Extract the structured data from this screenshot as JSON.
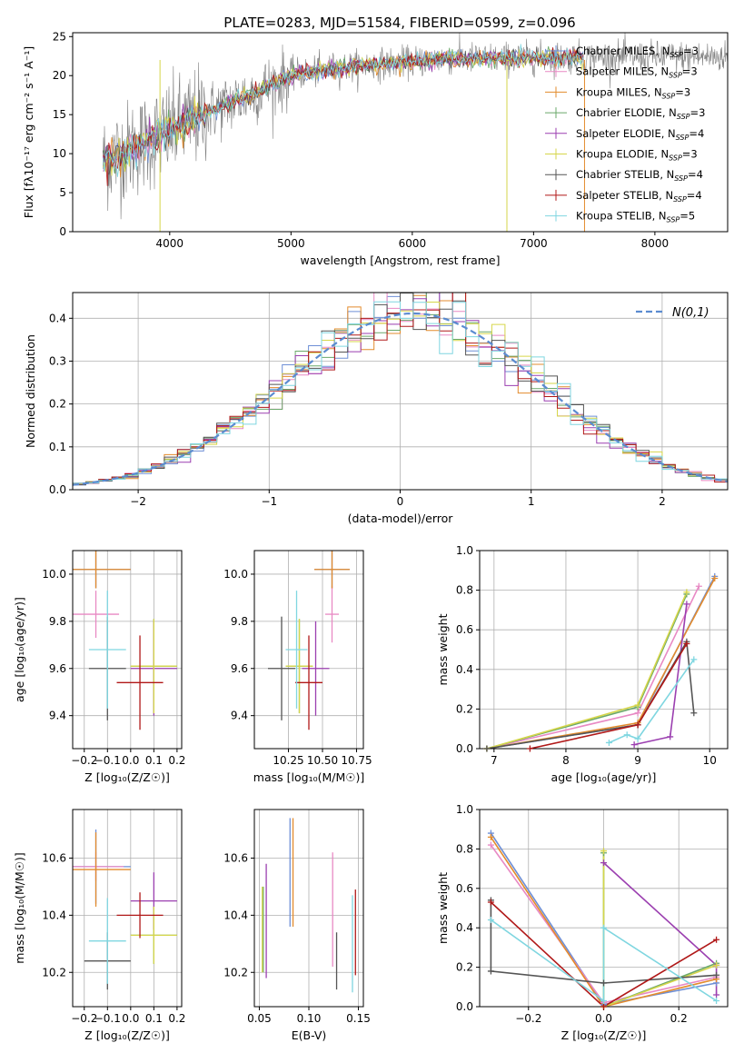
{
  "colors": {
    "blue": "#6e8fd6",
    "orange": "#e38b2c",
    "olive": "#a8a83a",
    "green": "#6aa86a",
    "purple": "#9b3fb0",
    "yellow": "#d6d64a",
    "dark": "#555555",
    "red": "#b01818",
    "cyan": "#7fd6e0",
    "pink": "#e889c4",
    "lime": "#b2e34a",
    "grey": "#808080",
    "dashed": "#5b8bd0"
  },
  "chart_data": [
    {
      "type": "line",
      "title": "PLATE=0283, MJD=51584, FIBERID=0599, z=0.096",
      "xlabel": "wavelength [Angstrom, rest frame]",
      "ylabel": "Flux [fλ10⁻¹⁷ erg cm⁻² s⁻¹ A⁻¹]",
      "xlim": [
        3200,
        8600
      ],
      "ylim": [
        0,
        25.5
      ],
      "xticks": [
        4000,
        5000,
        6000,
        7000,
        8000
      ],
      "yticks": [
        0,
        5,
        10,
        15,
        20,
        25
      ],
      "legend": [
        {
          "label": "Chabrier MILES, N",
          "sub": "SSP",
          "tail": "=3",
          "color": "blue"
        },
        {
          "label": "Salpeter MILES, N",
          "sub": "SSP",
          "tail": "=3",
          "color": "pink"
        },
        {
          "label": "Kroupa MILES, N",
          "sub": "SSP",
          "tail": "=3",
          "color": "orange"
        },
        {
          "label": "Chabrier ELODIE, N",
          "sub": "SSP",
          "tail": "=3",
          "color": "green"
        },
        {
          "label": "Salpeter ELODIE, N",
          "sub": "SSP",
          "tail": "=4",
          "color": "purple"
        },
        {
          "label": "Kroupa ELODIE, N",
          "sub": "SSP",
          "tail": "=3",
          "color": "yellow"
        },
        {
          "label": "Chabrier STELIB, N",
          "sub": "SSP",
          "tail": "=4",
          "color": "dark"
        },
        {
          "label": "Salpeter STELIB, N",
          "sub": "SSP",
          "tail": "=4",
          "color": "red"
        },
        {
          "label": "Kroupa STELIB, N",
          "sub": "SSP",
          "tail": "=5",
          "color": "cyan"
        }
      ],
      "continuum": {
        "x": [
          3450,
          3600,
          3800,
          4000,
          4200,
          4500,
          4800,
          5000,
          5300,
          5600,
          6000,
          6300,
          6600,
          7000,
          7200,
          7420
        ],
        "y": [
          9.0,
          10.0,
          11.5,
          13.0,
          14.5,
          16.5,
          18.5,
          20.0,
          20.8,
          21.3,
          21.8,
          22.2,
          22.2,
          22.3,
          22.3,
          22.4
        ]
      },
      "data_range": [
        3450,
        8600
      ],
      "model_end": 7420,
      "spikes": [
        {
          "x": 6780,
          "color": "yellow"
        },
        {
          "x": 7420,
          "color": "orange"
        },
        {
          "x": 3920,
          "color": "yellow"
        }
      ]
    },
    {
      "type": "histogram",
      "xlabel": "(data-model)/error",
      "ylabel": "Normed distribution",
      "xlim": [
        -2.5,
        2.5
      ],
      "ylim": [
        0,
        0.46
      ],
      "xticks": [
        -2,
        -1,
        0,
        1,
        2
      ],
      "yticks": [
        0.0,
        0.1,
        0.2,
        0.3,
        0.4
      ],
      "xtick_labels": [
        "−2",
        "−1",
        "0",
        "1",
        "2"
      ],
      "legend_label": "N(0,1)",
      "bin_width": 0.1,
      "gaussian": {
        "mu": 0.1,
        "sigma": 0.97
      }
    },
    {
      "type": "scatter",
      "xlabel": "Z [log₁₀(Z/Z☉)]",
      "ylabel": "age  [log₁₀(age/yr)]",
      "xlim": [
        -0.25,
        0.22
      ],
      "ylim": [
        9.26,
        10.1
      ],
      "xticks": [
        -0.2,
        -0.1,
        0.0,
        0.1,
        0.2
      ],
      "yticks": [
        9.4,
        9.6,
        9.8,
        10.0
      ],
      "xtick_labels": [
        "−0.2",
        "−0.1",
        "0.0",
        "0.1",
        "0.2"
      ],
      "points": [
        {
          "x": -0.15,
          "y": 10.02,
          "xerr": 0.15,
          "yerr": 0.08,
          "color": "blue"
        },
        {
          "x": -0.15,
          "y": 9.83,
          "xerr": 0.1,
          "yerr": 0.1,
          "color": "pink"
        },
        {
          "x": -0.15,
          "y": 10.02,
          "xerr": 0.15,
          "yerr": 0.08,
          "color": "orange"
        },
        {
          "x": 0.1,
          "y": 9.61,
          "xerr": 0.1,
          "yerr": 0.2,
          "color": "green"
        },
        {
          "x": 0.1,
          "y": 9.6,
          "xerr": 0.1,
          "yerr": 0.2,
          "color": "purple"
        },
        {
          "x": 0.1,
          "y": 9.61,
          "xerr": 0.1,
          "yerr": 0.2,
          "color": "yellow"
        },
        {
          "x": -0.1,
          "y": 9.6,
          "xerr": 0.08,
          "yerr": 0.22,
          "color": "dark"
        },
        {
          "x": 0.04,
          "y": 9.54,
          "xerr": 0.1,
          "yerr": 0.2,
          "color": "red"
        },
        {
          "x": -0.1,
          "y": 9.68,
          "xerr": 0.08,
          "yerr": 0.25,
          "color": "cyan"
        }
      ]
    },
    {
      "type": "scatter",
      "xlabel": "mass [log₁₀(M/M☉)]",
      "xlim": [
        10.0,
        10.8
      ],
      "ylim": [
        9.26,
        10.1
      ],
      "xticks": [
        10.25,
        10.5,
        10.75
      ],
      "yticks": [
        9.4,
        9.6,
        9.8,
        10.0
      ],
      "xtick_labels": [
        "10.25",
        "10.50",
        "10.75"
      ],
      "points": [
        {
          "x": 10.57,
          "y": 10.02,
          "xerr": 0.13,
          "yerr": 0.08,
          "color": "blue"
        },
        {
          "x": 10.57,
          "y": 9.83,
          "xerr": 0.05,
          "yerr": 0.12,
          "color": "pink"
        },
        {
          "x": 10.57,
          "y": 10.02,
          "xerr": 0.13,
          "yerr": 0.08,
          "color": "orange"
        },
        {
          "x": 10.33,
          "y": 9.61,
          "xerr": 0.1,
          "yerr": 0.2,
          "color": "green"
        },
        {
          "x": 10.45,
          "y": 9.6,
          "xerr": 0.1,
          "yerr": 0.2,
          "color": "purple"
        },
        {
          "x": 10.33,
          "y": 9.61,
          "xerr": 0.1,
          "yerr": 0.2,
          "color": "yellow"
        },
        {
          "x": 10.2,
          "y": 9.6,
          "xerr": 0.1,
          "yerr": 0.22,
          "color": "dark"
        },
        {
          "x": 10.4,
          "y": 9.54,
          "xerr": 0.1,
          "yerr": 0.2,
          "color": "red"
        },
        {
          "x": 10.31,
          "y": 9.68,
          "xerr": 0.08,
          "yerr": 0.25,
          "color": "cyan"
        }
      ]
    },
    {
      "type": "line",
      "xlabel": "age  [log₁₀(age/yr)]",
      "ylabel": "mass weight",
      "xlim": [
        6.8,
        10.25
      ],
      "ylim": [
        0,
        1
      ],
      "xticks": [
        7,
        8,
        9,
        10
      ],
      "yticks": [
        0.0,
        0.2,
        0.4,
        0.6,
        0.8,
        1.0
      ],
      "series": [
        {
          "color": "blue",
          "x": [
            6.9,
            9.0,
            10.07
          ],
          "y": [
            0.0,
            0.12,
            0.87
          ]
        },
        {
          "color": "pink",
          "x": [
            6.9,
            9.0,
            9.85
          ],
          "y": [
            0.0,
            0.18,
            0.82
          ]
        },
        {
          "color": "orange",
          "x": [
            6.9,
            9.0,
            10.07
          ],
          "y": [
            0.0,
            0.13,
            0.86
          ]
        },
        {
          "color": "green",
          "x": [
            6.9,
            9.0,
            9.68
          ],
          "y": [
            0.0,
            0.21,
            0.78
          ]
        },
        {
          "color": "purple",
          "x": [
            8.95,
            9.45,
            9.68
          ],
          "y": [
            0.02,
            0.06,
            0.73
          ]
        },
        {
          "color": "yellow",
          "x": [
            6.9,
            9.0,
            9.68
          ],
          "y": [
            0.0,
            0.22,
            0.79
          ]
        },
        {
          "color": "dark",
          "x": [
            6.9,
            9.0,
            9.68,
            9.78
          ],
          "y": [
            0.0,
            0.12,
            0.54,
            0.18
          ]
        },
        {
          "color": "red",
          "x": [
            7.5,
            9.0,
            9.68
          ],
          "y": [
            0.0,
            0.12,
            0.53
          ]
        },
        {
          "color": "cyan",
          "x": [
            8.6,
            8.85,
            9.0,
            9.78
          ],
          "y": [
            0.03,
            0.07,
            0.05,
            0.45
          ]
        }
      ]
    },
    {
      "type": "scatter",
      "xlabel": "Z [log₁₀(Z/Z☉)]",
      "ylabel": "mass [log₁₀(M/M☉)]",
      "xlim": [
        -0.25,
        0.22
      ],
      "ylim": [
        10.08,
        10.77
      ],
      "xticks": [
        -0.2,
        -0.1,
        0.0,
        0.1,
        0.2
      ],
      "yticks": [
        10.2,
        10.4,
        10.6
      ],
      "xtick_labels": [
        "−0.2",
        "−0.1",
        "0.0",
        "0.1",
        "0.2"
      ],
      "points": [
        {
          "x": -0.15,
          "y": 10.57,
          "xerr": 0.15,
          "yerr": 0.13,
          "color": "blue"
        },
        {
          "x": -0.15,
          "y": 10.57,
          "xerr": 0.12,
          "yerr": 0.05,
          "color": "pink"
        },
        {
          "x": -0.15,
          "y": 10.56,
          "xerr": 0.15,
          "yerr": 0.13,
          "color": "orange"
        },
        {
          "x": 0.1,
          "y": 10.33,
          "xerr": 0.1,
          "yerr": 0.1,
          "color": "green"
        },
        {
          "x": 0.1,
          "y": 10.45,
          "xerr": 0.1,
          "yerr": 0.1,
          "color": "purple"
        },
        {
          "x": 0.1,
          "y": 10.33,
          "xerr": 0.1,
          "yerr": 0.1,
          "color": "yellow"
        },
        {
          "x": -0.1,
          "y": 10.24,
          "xerr": 0.1,
          "yerr": 0.1,
          "color": "dark"
        },
        {
          "x": 0.04,
          "y": 10.4,
          "xerr": 0.1,
          "yerr": 0.08,
          "color": "red"
        },
        {
          "x": -0.1,
          "y": 10.31,
          "xerr": 0.08,
          "yerr": 0.15,
          "color": "cyan"
        }
      ]
    },
    {
      "type": "scatter",
      "xlabel": "E(B-V)",
      "xlim": [
        0.045,
        0.155
      ],
      "ylim": [
        10.08,
        10.77
      ],
      "xticks": [
        0.05,
        0.1,
        0.15
      ],
      "yticks": [
        10.2,
        10.4,
        10.6
      ],
      "xtick_labels": [
        "0.05",
        "0.10",
        "0.15"
      ],
      "points": [
        {
          "x": 0.081,
          "y": 10.55,
          "yerr": 0.19,
          "color": "blue"
        },
        {
          "x": 0.124,
          "y": 10.42,
          "yerr": 0.2,
          "color": "pink"
        },
        {
          "x": 0.084,
          "y": 10.55,
          "yerr": 0.19,
          "color": "orange"
        },
        {
          "x": 0.054,
          "y": 10.35,
          "yerr": 0.15,
          "color": "green"
        },
        {
          "x": 0.057,
          "y": 10.38,
          "yerr": 0.2,
          "color": "purple"
        },
        {
          "x": 0.053,
          "y": 10.35,
          "yerr": 0.15,
          "color": "yellow"
        },
        {
          "x": 0.128,
          "y": 10.24,
          "yerr": 0.1,
          "color": "dark"
        },
        {
          "x": 0.147,
          "y": 10.34,
          "yerr": 0.15,
          "color": "red"
        },
        {
          "x": 0.144,
          "y": 10.3,
          "yerr": 0.17,
          "color": "cyan"
        }
      ]
    },
    {
      "type": "line",
      "xlabel": "Z [log₁₀(Z/Z☉)]",
      "ylabel": "mass weight",
      "xlim": [
        -0.33,
        0.33
      ],
      "ylim": [
        0,
        1
      ],
      "xticks": [
        -0.2,
        0.0,
        0.2
      ],
      "yticks": [
        0.0,
        0.2,
        0.4,
        0.6,
        0.8,
        1.0
      ],
      "xtick_labels": [
        "−0.2",
        "0.0",
        "0.2"
      ],
      "series": [
        {
          "color": "blue",
          "x": [
            -0.3,
            0.0,
            0.3
          ],
          "y": [
            0.88,
            0.01,
            0.12
          ]
        },
        {
          "color": "pink",
          "x": [
            -0.3,
            0.0,
            0.3
          ],
          "y": [
            0.82,
            0.02,
            0.15
          ]
        },
        {
          "color": "orange",
          "x": [
            -0.3,
            0.0,
            0.3
          ],
          "y": [
            0.86,
            0.0,
            0.14
          ]
        },
        {
          "color": "green",
          "x": [
            0.0,
            0.0,
            0.3
          ],
          "y": [
            0.78,
            0.0,
            0.22
          ]
        },
        {
          "color": "purple",
          "x": [
            0.0,
            0.3,
            0.3
          ],
          "y": [
            0.73,
            0.21,
            0.06
          ]
        },
        {
          "color": "yellow",
          "x": [
            0.0,
            0.0,
            0.3
          ],
          "y": [
            0.79,
            0.0,
            0.21
          ]
        },
        {
          "color": "dark",
          "x": [
            -0.3,
            -0.3,
            0.0,
            0.3
          ],
          "y": [
            0.54,
            0.18,
            0.12,
            0.16
          ]
        },
        {
          "color": "red",
          "x": [
            -0.3,
            0.0,
            0.3
          ],
          "y": [
            0.53,
            0.0,
            0.34
          ]
        },
        {
          "color": "cyan",
          "x": [
            -0.3,
            0.0,
            0.0,
            0.3
          ],
          "y": [
            0.44,
            0.03,
            0.4,
            0.03
          ]
        }
      ]
    }
  ]
}
